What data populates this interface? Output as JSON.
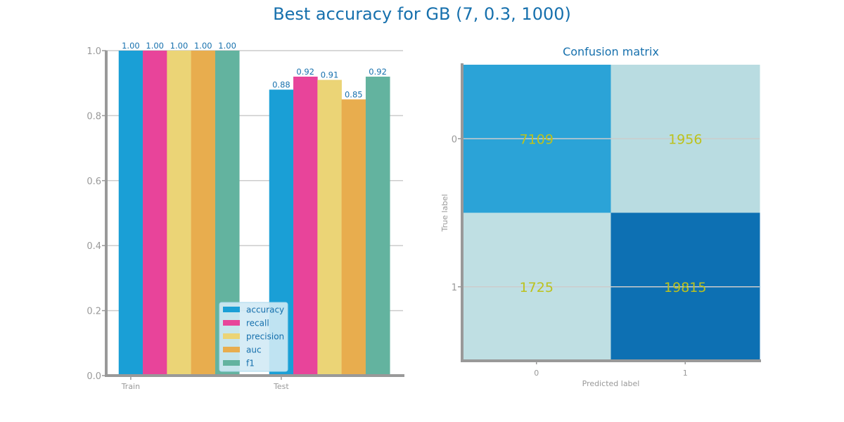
{
  "figure": {
    "title": "Best accuracy for GB (7, 0.3, 1000)"
  },
  "colors": {
    "title": "#1670ad",
    "axis": "#999999",
    "grid": "#cccccc",
    "legend_bg": "#d2eaf5",
    "legend_edge": "#a8d8ec",
    "cm_text": "#bcc21d"
  },
  "chart_data": [
    {
      "type": "bar",
      "title": "",
      "xlabel": "",
      "ylabel": "",
      "categories": [
        "Train",
        "Test"
      ],
      "ylim": [
        0,
        1.0
      ],
      "yticks": [
        "0.0",
        "0.2",
        "0.4",
        "0.6",
        "0.8",
        "1.0"
      ],
      "grid": true,
      "legend_position": "lower-center",
      "series": [
        {
          "name": "accuracy",
          "color": "#1a9fd6",
          "values": [
            1.0,
            0.88
          ],
          "labels": [
            "1.00",
            "0.88"
          ]
        },
        {
          "name": "recall",
          "color": "#e8449a",
          "values": [
            1.0,
            0.92
          ],
          "labels": [
            "1.00",
            "0.92"
          ]
        },
        {
          "name": "precision",
          "color": "#ebd476",
          "values": [
            1.0,
            0.91
          ],
          "labels": [
            "1.00",
            "0.91"
          ]
        },
        {
          "name": "auc",
          "color": "#e8ad4e",
          "values": [
            1.0,
            0.85
          ],
          "labels": [
            "1.00",
            "0.85"
          ]
        },
        {
          "name": "f1",
          "color": "#63b39f",
          "values": [
            1.0,
            0.92
          ],
          "labels": [
            "1.00",
            "0.92"
          ]
        }
      ]
    },
    {
      "type": "heatmap",
      "title": "Confusion matrix",
      "xlabel": "Predicted label",
      "ylabel": "True label",
      "x_ticks": [
        "0",
        "1"
      ],
      "y_ticks": [
        "0",
        "1"
      ],
      "values": [
        [
          7109,
          1956
        ],
        [
          1725,
          19815
        ]
      ],
      "cell_colors": [
        [
          "#2ba3d7",
          "#b9dce1"
        ],
        [
          "#bfdfe3",
          "#0d70b3"
        ]
      ]
    }
  ]
}
